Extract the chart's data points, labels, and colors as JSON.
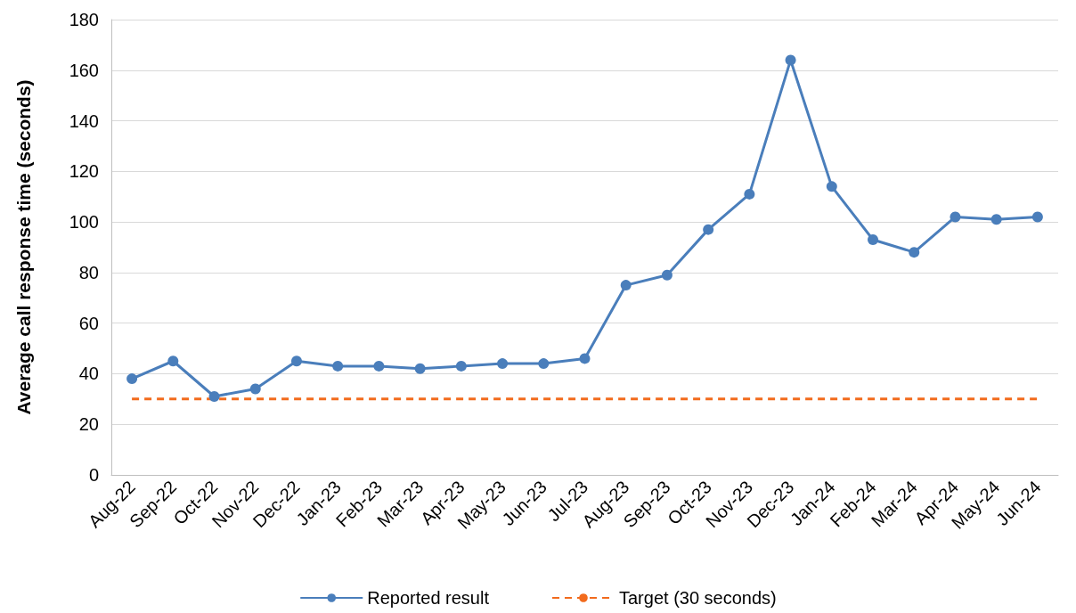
{
  "chart_data": {
    "type": "line",
    "ylabel": "Average call response time (seconds)",
    "categories": [
      "Aug-22",
      "Sep-22",
      "Oct-22",
      "Nov-22",
      "Dec-22",
      "Jan-23",
      "Feb-23",
      "Mar-23",
      "Apr-23",
      "May-23",
      "Jun-23",
      "Jul-23",
      "Aug-23",
      "Sep-23",
      "Oct-23",
      "Nov-23",
      "Dec-23",
      "Jan-24",
      "Feb-24",
      "Mar-24",
      "Apr-24",
      "May-24",
      "Jun-24"
    ],
    "series": [
      {
        "name": "Reported result",
        "color": "#4a7ebb",
        "marker": "circle",
        "line_style": "solid",
        "values": [
          38,
          45,
          31,
          34,
          45,
          43,
          43,
          42,
          43,
          44,
          44,
          46,
          75,
          79,
          97,
          111,
          164,
          114,
          93,
          88,
          102,
          101,
          102
        ]
      },
      {
        "name": "Target (30 seconds)",
        "color": "#f26b1d",
        "marker": "none",
        "line_style": "dashed",
        "values": [
          30,
          30,
          30,
          30,
          30,
          30,
          30,
          30,
          30,
          30,
          30,
          30,
          30,
          30,
          30,
          30,
          30,
          30,
          30,
          30,
          30,
          30,
          30
        ]
      }
    ],
    "ylim": [
      0,
      180
    ],
    "yticks": [
      0,
      20,
      40,
      60,
      80,
      100,
      120,
      140,
      160,
      180
    ],
    "grid": "y",
    "legend": "bottom"
  }
}
